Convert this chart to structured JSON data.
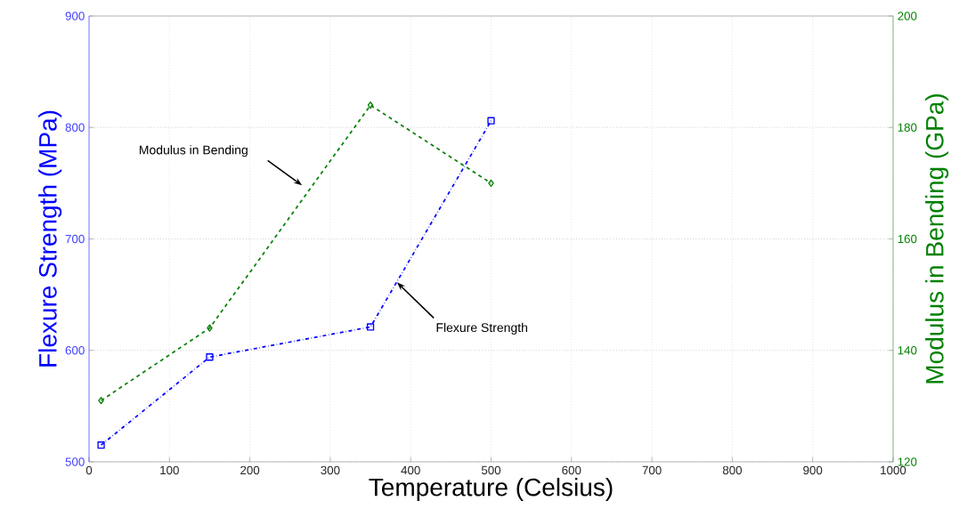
{
  "chart_data": {
    "type": "line",
    "xlabel": "Temperature (Celsius)",
    "ylabel": "Flexure Strength (MPa)",
    "y2label": "Modulus in Bending (GPa)",
    "x": [
      15,
      150,
      350,
      500
    ],
    "series": [
      {
        "color": "#0000ff",
        "values": [
          515,
          594,
          621,
          806
        ],
        "marker": "square",
        "line_style": "dashdot"
      },
      {
        "color": "#008000",
        "values": [
          131,
          144,
          184,
          170
        ],
        "marker": "diamond",
        "line_style": "dashed",
        "axis": "y2"
      }
    ],
    "xlim": [
      0,
      1000
    ],
    "xticks": [
      0,
      100,
      200,
      300,
      400,
      500,
      600,
      700,
      800,
      900,
      1000
    ],
    "ylim": [
      500,
      900
    ],
    "yticks": [
      500,
      600,
      700,
      800,
      900
    ],
    "y2lim": [
      120,
      200
    ],
    "y2ticks": [
      120,
      140,
      160,
      180,
      200
    ],
    "grid": true,
    "annotations": [
      "Modulus in Bending",
      {
        "text": "Flexure Strength",
        "x": 383,
        "y": 661
      }
    ]
  }
}
